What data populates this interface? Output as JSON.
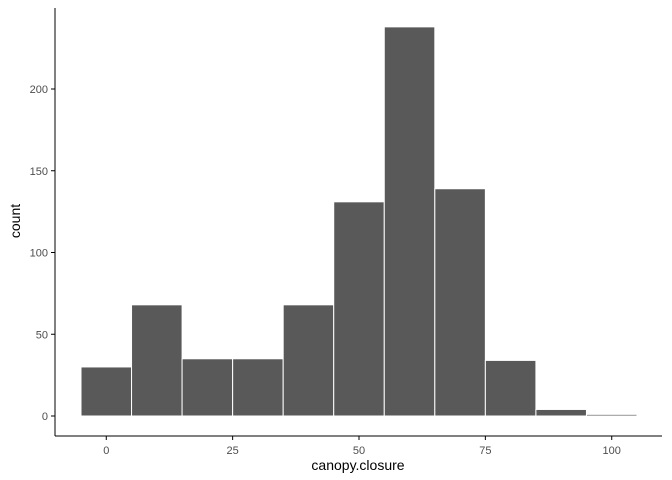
{
  "chart_data": {
    "type": "bar",
    "subtype": "histogram",
    "title": "",
    "xlabel": "canopy.closure",
    "ylabel": "count",
    "xlim": [
      -5,
      105
    ],
    "ylim": [
      0,
      240
    ],
    "x_ticks": [
      0,
      25,
      50,
      75,
      100
    ],
    "y_ticks": [
      0,
      50,
      100,
      150,
      200
    ],
    "bins": [
      {
        "start": -5,
        "end": 5,
        "count": 30
      },
      {
        "start": 5,
        "end": 15,
        "count": 68
      },
      {
        "start": 15,
        "end": 25,
        "count": 35
      },
      {
        "start": 25,
        "end": 35,
        "count": 35
      },
      {
        "start": 35,
        "end": 45,
        "count": 68
      },
      {
        "start": 45,
        "end": 55,
        "count": 131
      },
      {
        "start": 55,
        "end": 65,
        "count": 238
      },
      {
        "start": 65,
        "end": 75,
        "count": 139
      },
      {
        "start": 75,
        "end": 85,
        "count": 34
      },
      {
        "start": 85,
        "end": 95,
        "count": 4
      },
      {
        "start": 95,
        "end": 105,
        "count": 1
      }
    ],
    "grid": false,
    "colors": {
      "bar_fill": "#595959",
      "bar_stroke": "#ffffff",
      "axis": "#000000",
      "tick_text": "#4d4d4d"
    }
  }
}
